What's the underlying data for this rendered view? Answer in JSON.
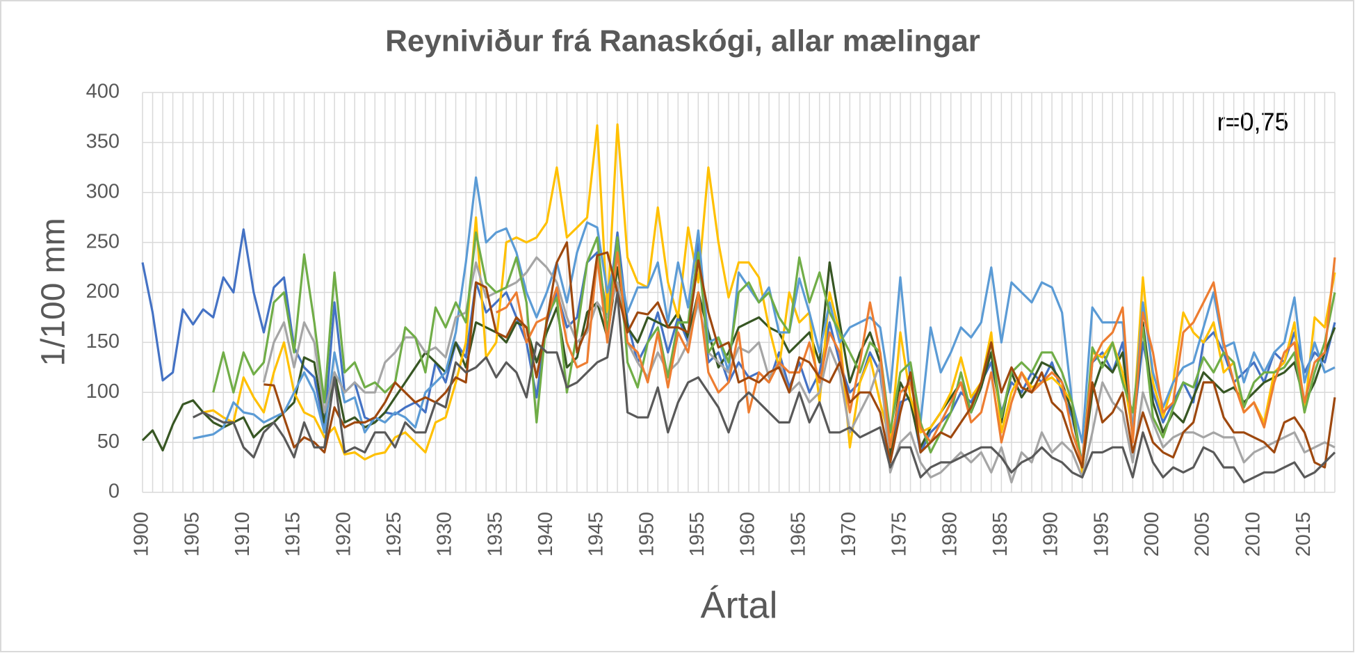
{
  "chart_data": {
    "type": "line",
    "title": "Reyniviður frá Ranaskógi, allar mælingar",
    "x_label": "Ártal",
    "y_label": "1/100 mm",
    "annotation": "r=0,75",
    "x": [
      1900,
      1901,
      1902,
      1903,
      1904,
      1905,
      1906,
      1907,
      1908,
      1909,
      1910,
      1911,
      1912,
      1913,
      1914,
      1915,
      1916,
      1917,
      1918,
      1919,
      1920,
      1921,
      1922,
      1923,
      1924,
      1925,
      1926,
      1927,
      1928,
      1929,
      1930,
      1931,
      1932,
      1933,
      1934,
      1935,
      1936,
      1937,
      1938,
      1939,
      1940,
      1941,
      1942,
      1943,
      1944,
      1945,
      1946,
      1947,
      1948,
      1949,
      1950,
      1951,
      1952,
      1953,
      1954,
      1955,
      1956,
      1957,
      1958,
      1959,
      1960,
      1961,
      1962,
      1963,
      1964,
      1965,
      1966,
      1967,
      1968,
      1969,
      1970,
      1971,
      1972,
      1973,
      1974,
      1975,
      1976,
      1977,
      1978,
      1979,
      1980,
      1981,
      1982,
      1983,
      1984,
      1985,
      1986,
      1987,
      1988,
      1989,
      1990,
      1991,
      1992,
      1993,
      1994,
      1995,
      1996,
      1997,
      1998,
      1999,
      2000,
      2001,
      2002,
      2003,
      2004,
      2005,
      2006,
      2007,
      2008,
      2009,
      2010,
      2011,
      2012,
      2013,
      2014,
      2015,
      2016,
      2017,
      2018
    ],
    "xlim": [
      1900,
      2018
    ],
    "xticks": [
      1900,
      1905,
      1910,
      1915,
      1920,
      1925,
      1930,
      1935,
      1940,
      1945,
      1950,
      1955,
      1960,
      1965,
      1970,
      1975,
      1980,
      1985,
      1990,
      1995,
      2000,
      2005,
      2010,
      2015
    ],
    "ylim": [
      0,
      400
    ],
    "yticks": [
      0,
      50,
      100,
      150,
      200,
      250,
      300,
      350,
      400
    ],
    "grid": true,
    "series": [
      {
        "color": "#4472c4",
        "values": [
          230,
          180,
          112,
          120,
          183,
          168,
          183,
          175,
          215,
          200,
          263,
          200,
          160,
          205,
          215,
          145,
          125,
          115,
          65,
          190,
          100,
          110,
          75,
          70,
          80,
          78,
          85,
          90,
          80,
          130,
          110,
          150,
          135,
          210,
          180,
          190,
          200,
          175,
          150,
          95,
          170,
          200,
          165,
          175,
          230,
          240,
          175,
          260,
          170,
          130,
          150,
          180,
          140,
          175,
          150,
          250,
          130,
          140,
          110,
          130,
          115,
          120,
          110,
          140,
          105,
          130,
          100,
          120,
          170,
          130,
          100,
          110,
          140,
          120,
          40,
          90,
          95,
          40,
          60,
          70,
          80,
          100,
          90,
          110,
          130,
          80,
          110,
          100,
          120,
          110,
          130,
          100,
          75,
          30,
          130,
          140,
          120,
          150,
          60,
          150,
          100,
          70,
          90,
          110,
          90,
          150,
          160,
          140,
          110,
          120,
          130,
          110,
          140,
          130,
          160,
          120,
          140,
          130,
          170
        ]
      },
      {
        "color": "#375623",
        "values": [
          52,
          62,
          42,
          68,
          88,
          92,
          80,
          70,
          65,
          70,
          75,
          55,
          65,
          70,
          80,
          90,
          135,
          130,
          70,
          120,
          70,
          75,
          65,
          70,
          80,
          95,
          110,
          125,
          140,
          130,
          120,
          150,
          125,
          170,
          165,
          160,
          150,
          170,
          165,
          130,
          160,
          185,
          125,
          135,
          180,
          190,
          155,
          225,
          165,
          150,
          175,
          170,
          165,
          180,
          155,
          200,
          160,
          125,
          140,
          165,
          170,
          175,
          165,
          160,
          140,
          150,
          160,
          130,
          230,
          170,
          110,
          140,
          160,
          130,
          35,
          110,
          90,
          45,
          65,
          80,
          95,
          110,
          80,
          105,
          140,
          70,
          120,
          95,
          110,
          130,
          125,
          110,
          80,
          25,
          100,
          130,
          120,
          140,
          55,
          170,
          90,
          60,
          80,
          70,
          95,
          120,
          110,
          100,
          105,
          90,
          100,
          110,
          115,
          120,
          130,
          90,
          110,
          140,
          165
        ]
      },
      {
        "color": "#ffc000",
        "values": [
          null,
          null,
          null,
          null,
          null,
          null,
          80,
          82,
          75,
          70,
          115,
          95,
          80,
          120,
          150,
          100,
          80,
          75,
          55,
          65,
          38,
          40,
          33,
          38,
          40,
          55,
          60,
          50,
          40,
          70,
          75,
          110,
          150,
          275,
          135,
          150,
          250,
          255,
          250,
          255,
          270,
          325,
          255,
          265,
          275,
          367,
          180,
          368,
          235,
          210,
          205,
          285,
          210,
          175,
          265,
          210,
          325,
          250,
          195,
          230,
          230,
          215,
          165,
          125,
          200,
          170,
          180,
          90,
          200,
          160,
          45,
          110,
          135,
          90,
          50,
          160,
          95,
          60,
          65,
          80,
          100,
          135,
          95,
          110,
          160,
          60,
          100,
          120,
          105,
          110,
          115,
          105,
          90,
          20,
          140,
          135,
          150,
          120,
          60,
          215,
          110,
          75,
          110,
          180,
          160,
          150,
          170,
          120,
          130,
          80,
          90,
          70,
          120,
          130,
          170,
          80,
          175,
          165,
          220
        ]
      },
      {
        "color": "#5b9bd5",
        "values": [
          null,
          null,
          null,
          null,
          null,
          54,
          56,
          58,
          65,
          90,
          80,
          78,
          70,
          75,
          80,
          100,
          120,
          100,
          60,
          140,
          90,
          95,
          60,
          75,
          70,
          80,
          75,
          65,
          100,
          110,
          120,
          160,
          230,
          315,
          250,
          260,
          264,
          240,
          200,
          175,
          200,
          230,
          190,
          240,
          270,
          265,
          200,
          240,
          180,
          205,
          205,
          230,
          170,
          230,
          185,
          262,
          150,
          155,
          120,
          220,
          205,
          190,
          205,
          160,
          160,
          214,
          180,
          140,
          190,
          150,
          165,
          170,
          175,
          165,
          100,
          215,
          110,
          70,
          165,
          120,
          140,
          165,
          155,
          170,
          225,
          150,
          210,
          200,
          190,
          210,
          205,
          180,
          90,
          50,
          185,
          170,
          170,
          170,
          60,
          190,
          120,
          85,
          110,
          125,
          130,
          165,
          200,
          145,
          150,
          110,
          140,
          120,
          140,
          150,
          195,
          110,
          150,
          120,
          125
        ]
      },
      {
        "color": "#a5a5a5",
        "values": [
          null,
          null,
          null,
          null,
          null,
          null,
          null,
          null,
          null,
          null,
          null,
          null,
          110,
          150,
          170,
          125,
          170,
          150,
          80,
          120,
          100,
          110,
          100,
          100,
          130,
          140,
          155,
          155,
          140,
          145,
          135,
          175,
          180,
          230,
          195,
          200,
          205,
          210,
          220,
          235,
          225,
          210,
          175,
          150,
          160,
          190,
          175,
          210,
          150,
          130,
          115,
          140,
          120,
          130,
          150,
          190,
          140,
          130,
          120,
          145,
          140,
          150,
          115,
          130,
          100,
          110,
          90,
          100,
          145,
          120,
          60,
          80,
          100,
          130,
          20,
          50,
          60,
          30,
          15,
          20,
          30,
          40,
          30,
          40,
          20,
          45,
          10,
          40,
          30,
          60,
          40,
          50,
          40,
          15,
          60,
          110,
          90,
          80,
          30,
          100,
          70,
          45,
          55,
          60,
          60,
          55,
          60,
          55,
          55,
          30,
          40,
          45,
          50,
          55,
          60,
          40,
          45,
          50,
          45
        ]
      },
      {
        "color": "#70ad47",
        "values": [
          null,
          null,
          null,
          null,
          null,
          null,
          null,
          100,
          140,
          100,
          140,
          118,
          130,
          190,
          200,
          140,
          238,
          170,
          90,
          220,
          120,
          130,
          105,
          110,
          100,
          110,
          165,
          155,
          120,
          185,
          165,
          190,
          170,
          260,
          210,
          200,
          205,
          235,
          190,
          70,
          175,
          195,
          100,
          160,
          230,
          255,
          160,
          255,
          130,
          105,
          150,
          165,
          115,
          170,
          170,
          240,
          140,
          155,
          130,
          200,
          210,
          190,
          200,
          175,
          160,
          235,
          190,
          220,
          180,
          160,
          140,
          120,
          150,
          140,
          60,
          120,
          130,
          70,
          40,
          60,
          80,
          120,
          80,
          110,
          150,
          75,
          120,
          130,
          120,
          140,
          140,
          120,
          90,
          25,
          145,
          125,
          150,
          110,
          80,
          165,
          75,
          55,
          85,
          110,
          105,
          135,
          120,
          140,
          130,
          85,
          110,
          120,
          120,
          125,
          140,
          80,
          120,
          150,
          200
        ]
      },
      {
        "color": "#ed7d31",
        "values": [
          null,
          null,
          null,
          null,
          null,
          null,
          null,
          null,
          null,
          null,
          null,
          null,
          null,
          null,
          null,
          null,
          null,
          null,
          null,
          null,
          null,
          null,
          null,
          null,
          null,
          null,
          null,
          null,
          null,
          null,
          null,
          null,
          null,
          null,
          null,
          180,
          185,
          200,
          150,
          170,
          175,
          205,
          150,
          125,
          130,
          235,
          150,
          240,
          150,
          140,
          110,
          160,
          105,
          160,
          140,
          200,
          120,
          100,
          110,
          160,
          80,
          120,
          110,
          130,
          120,
          120,
          150,
          110,
          160,
          140,
          80,
          130,
          190,
          140,
          45,
          100,
          110,
          65,
          50,
          70,
          90,
          110,
          70,
          80,
          120,
          50,
          90,
          120,
          100,
          110,
          120,
          110,
          60,
          30,
          130,
          150,
          160,
          185,
          50,
          180,
          140,
          80,
          90,
          160,
          170,
          190,
          210,
          150,
          110,
          80,
          90,
          65,
          110,
          140,
          150,
          90,
          130,
          140,
          235
        ]
      },
      {
        "color": "#9e480e",
        "values": [
          null,
          null,
          null,
          null,
          null,
          null,
          null,
          null,
          null,
          null,
          null,
          null,
          108,
          107,
          75,
          45,
          55,
          50,
          40,
          85,
          65,
          70,
          70,
          75,
          90,
          110,
          100,
          90,
          95,
          90,
          100,
          115,
          110,
          210,
          205,
          160,
          155,
          175,
          165,
          115,
          170,
          230,
          250,
          140,
          165,
          237,
          240,
          200,
          160,
          180,
          178,
          190,
          165,
          165,
          160,
          232,
          180,
          145,
          150,
          110,
          115,
          110,
          120,
          125,
          100,
          135,
          130,
          115,
          110,
          130,
          90,
          100,
          100,
          80,
          30,
          80,
          120,
          40,
          50,
          60,
          55,
          70,
          85,
          110,
          150,
          100,
          125,
          105,
          100,
          120,
          90,
          80,
          50,
          25,
          110,
          70,
          80,
          100,
          40,
          80,
          50,
          40,
          35,
          60,
          70,
          110,
          110,
          75,
          60,
          60,
          55,
          50,
          40,
          70,
          75,
          60,
          30,
          25,
          95
        ]
      },
      {
        "color": "#595959",
        "values": [
          null,
          null,
          null,
          null,
          null,
          75,
          80,
          75,
          70,
          70,
          45,
          35,
          60,
          70,
          55,
          35,
          70,
          45,
          45,
          115,
          40,
          45,
          40,
          60,
          60,
          45,
          70,
          60,
          60,
          90,
          85,
          130,
          120,
          125,
          135,
          115,
          130,
          120,
          95,
          150,
          140,
          140,
          105,
          110,
          120,
          130,
          135,
          200,
          80,
          75,
          75,
          105,
          60,
          90,
          110,
          115,
          100,
          85,
          60,
          90,
          100,
          90,
          80,
          70,
          70,
          100,
          70,
          90,
          60,
          60,
          65,
          55,
          60,
          65,
          25,
          45,
          45,
          15,
          25,
          30,
          30,
          35,
          40,
          45,
          45,
          35,
          20,
          30,
          35,
          45,
          35,
          30,
          20,
          15,
          40,
          40,
          45,
          45,
          15,
          60,
          30,
          15,
          25,
          20,
          25,
          45,
          40,
          25,
          25,
          10,
          15,
          20,
          20,
          25,
          30,
          15,
          20,
          30,
          40
        ]
      }
    ]
  }
}
